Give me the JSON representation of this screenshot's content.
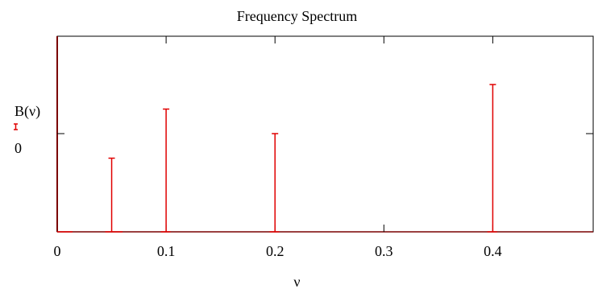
{
  "chart_data": {
    "type": "bar",
    "title": "Frequency Spectrum",
    "xlabel": "ν",
    "ylabel": "B(ν)",
    "xlim": [
      0,
      0.49
    ],
    "ylim": [
      -1,
      1
    ],
    "x_ticks": [
      {
        "value": 0,
        "label": "0"
      },
      {
        "value": 0.1,
        "label": "0.1"
      },
      {
        "value": 0.2,
        "label": "0.2"
      },
      {
        "value": 0.3,
        "label": "0.3"
      },
      {
        "value": 0.4,
        "label": "0.4"
      }
    ],
    "y_ticks": [
      {
        "value": 0,
        "label": "0"
      }
    ],
    "series": [
      {
        "color": "#e00000",
        "points": [
          {
            "x": 0.05,
            "y": -0.25
          },
          {
            "x": 0.1,
            "y": 0.25
          },
          {
            "x": 0.2,
            "y": 0.0
          },
          {
            "x": 0.4,
            "y": 0.5
          }
        ]
      }
    ]
  }
}
